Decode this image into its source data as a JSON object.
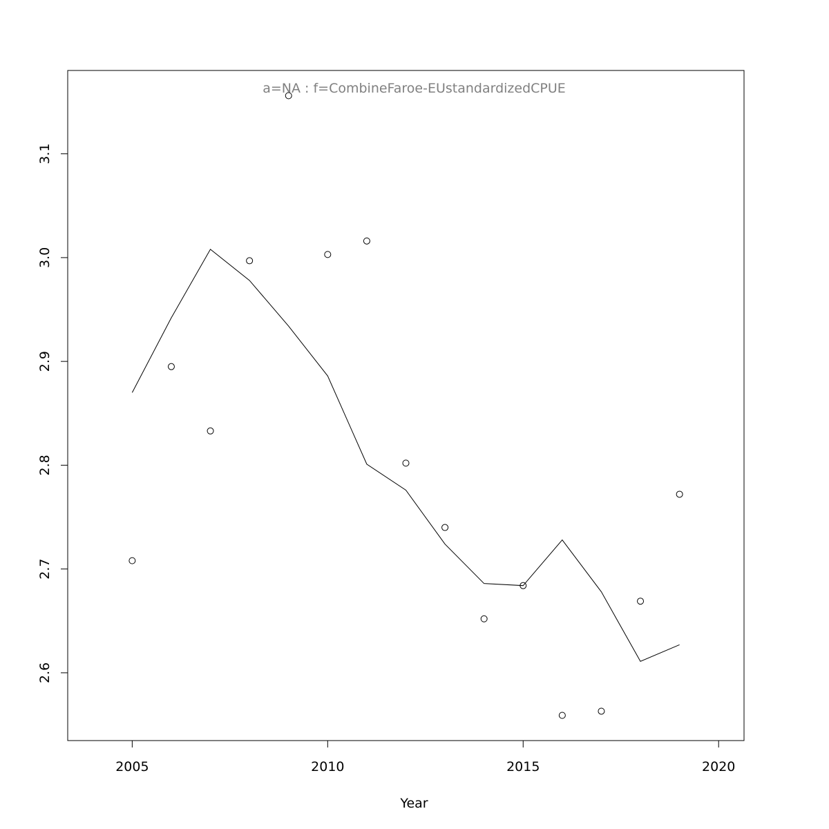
{
  "chart_data": {
    "type": "scatter",
    "title": "a=NA  :  f=CombineFaroe-EUstandardizedCPUE",
    "xlabel": "Year",
    "ylabel": "",
    "xlim": [
      2003.35,
      2020.65
    ],
    "ylim": [
      2.5347,
      3.1803
    ],
    "x_ticks": [
      2005,
      2010,
      2015,
      2020
    ],
    "y_ticks": [
      2.6,
      2.7,
      2.8,
      2.9,
      3.0,
      3.1
    ],
    "y_tick_labels": [
      "2.6",
      "2.7",
      "2.8",
      "2.9",
      "3.0",
      "3.1"
    ],
    "grid": false,
    "legend": "none",
    "colors": {
      "points": "#000000",
      "line": "#000000",
      "title": "#808080",
      "frame": "#000000"
    },
    "series": [
      {
        "style": "points",
        "x": [
          2005,
          2006,
          2007,
          2008,
          2009,
          2010,
          2011,
          2012,
          2013,
          2014,
          2015,
          2016,
          2017,
          2018,
          2019
        ],
        "y": [
          2.708,
          2.895,
          2.833,
          2.997,
          3.156,
          3.003,
          3.016,
          2.802,
          2.74,
          2.652,
          2.684,
          2.559,
          2.563,
          2.669,
          2.772
        ]
      },
      {
        "style": "line",
        "x": [
          2005,
          2006,
          2007,
          2008,
          2009,
          2010,
          2011,
          2012,
          2013,
          2014,
          2015,
          2016,
          2017,
          2018,
          2019
        ],
        "y": [
          2.87,
          2.942,
          3.008,
          2.978,
          2.934,
          2.886,
          2.801,
          2.776,
          2.724,
          2.686,
          2.684,
          2.728,
          2.678,
          2.611,
          2.627
        ]
      }
    ]
  }
}
